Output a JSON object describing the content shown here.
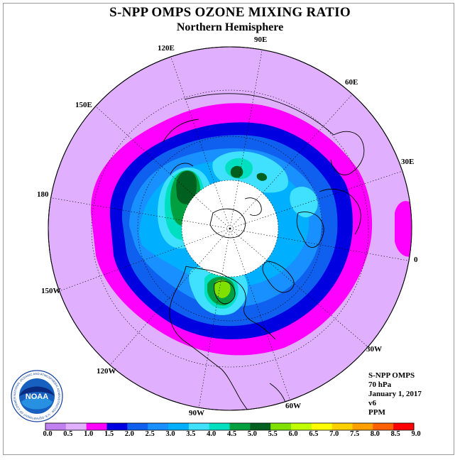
{
  "title": "S-NPP OMPS OZONE MIXING RATIO",
  "subtitle": "Northern Hemisphere",
  "longitude_labels": [
    "90E",
    "60E",
    "30E",
    "0",
    "30W",
    "60W",
    "90W",
    "120W",
    "150W",
    "180",
    "150E",
    "120E"
  ],
  "info": {
    "instrument": "S-NPP OMPS",
    "level": "70 hPa",
    "date": "January 1, 2017",
    "version": "v6",
    "units": "PPM"
  },
  "colorbar": {
    "labels": [
      "0.0",
      "0.5",
      "1.0",
      "1.5",
      "2.0",
      "2.5",
      "3.0",
      "3.5",
      "4.0",
      "4.5",
      "5.0",
      "5.5",
      "6.0",
      "6.5",
      "7.0",
      "7.5",
      "8.0",
      "8.5",
      "9.0"
    ],
    "colors": [
      "#c080f0",
      "#e0b0ff",
      "#ff00ff",
      "#0000e0",
      "#1060f0",
      "#1890ff",
      "#00b0ff",
      "#40e0ff",
      "#00e0c0",
      "#00a040",
      "#006020",
      "#80e000",
      "#c0ff00",
      "#ffff00",
      "#ffd000",
      "#ffa000",
      "#ff6000",
      "#ff0000",
      "#c00000"
    ]
  },
  "colors": {
    "background": "#ffffff",
    "disk": "#e0b0ff",
    "band_1_0": "#ff00ff",
    "band_1_5": "#0000e0",
    "band_2_0": "#1060f0",
    "band_2_5": "#1890ff",
    "band_3_0": "#00b0ff",
    "band_3_5": "#40e0ff",
    "band_4_0": "#00e0c0",
    "band_4_5": "#00a040",
    "band_5_0": "#006020",
    "band_5_5": "#80e000",
    "missing": "#ffffff"
  },
  "logo": {
    "text": "NOAA",
    "ring_text": "NATIONAL OCEANIC AND ATMOSPHERIC ADMINISTRATION · U.S. DEPARTMENT OF COMMERCE"
  }
}
